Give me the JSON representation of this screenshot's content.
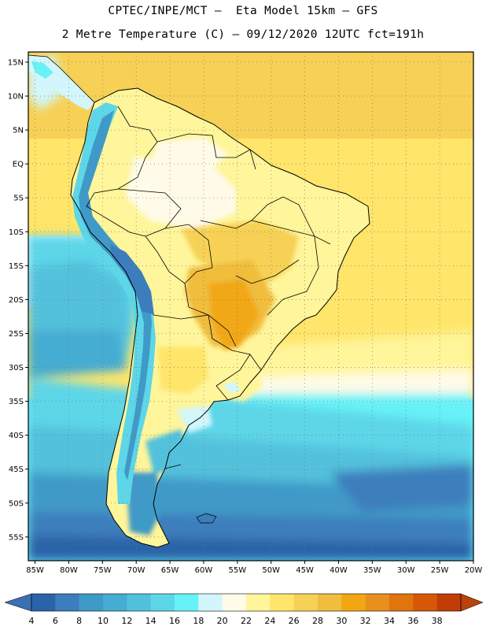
{
  "header": {
    "line1": "CPTEC/INPE/MCT –  Eta Model 15km – GFS",
    "line2": "2 Metre Temperature (C) – 09/12/2020 12UTC fct=191h"
  },
  "map": {
    "extent": {
      "lon": [
        -86,
        -20
      ],
      "lat": [
        -58.5,
        16.5
      ]
    },
    "lat_ticks": [
      {
        "value": 15,
        "label": "15N"
      },
      {
        "value": 10,
        "label": "10N"
      },
      {
        "value": 5,
        "label": "5N"
      },
      {
        "value": 0,
        "label": "EQ"
      },
      {
        "value": -5,
        "label": "5S"
      },
      {
        "value": -10,
        "label": "10S"
      },
      {
        "value": -15,
        "label": "15S"
      },
      {
        "value": -20,
        "label": "20S"
      },
      {
        "value": -25,
        "label": "25S"
      },
      {
        "value": -30,
        "label": "30S"
      },
      {
        "value": -35,
        "label": "35S"
      },
      {
        "value": -40,
        "label": "40S"
      },
      {
        "value": -45,
        "label": "45S"
      },
      {
        "value": -50,
        "label": "50S"
      },
      {
        "value": -55,
        "label": "55S"
      }
    ],
    "lon_ticks": [
      {
        "value": -85,
        "label": "85W"
      },
      {
        "value": -80,
        "label": "80W"
      },
      {
        "value": -75,
        "label": "75W"
      },
      {
        "value": -70,
        "label": "70W"
      },
      {
        "value": -65,
        "label": "65W"
      },
      {
        "value": -60,
        "label": "60W"
      },
      {
        "value": -55,
        "label": "55W"
      },
      {
        "value": -50,
        "label": "50W"
      },
      {
        "value": -45,
        "label": "45W"
      },
      {
        "value": -40,
        "label": "40W"
      },
      {
        "value": -35,
        "label": "35W"
      },
      {
        "value": -30,
        "label": "30W"
      },
      {
        "value": -25,
        "label": "25W"
      },
      {
        "value": -20,
        "label": "20W"
      }
    ]
  },
  "colorbar": {
    "labels": [
      "4",
      "6",
      "8",
      "10",
      "12",
      "14",
      "16",
      "18",
      "20",
      "22",
      "24",
      "26",
      "28",
      "30",
      "32",
      "34",
      "36",
      "38"
    ],
    "colors": [
      "#2a63a8",
      "#3c7ebd",
      "#3f9ac8",
      "#45acd2",
      "#52c1dc",
      "#5dd6e8",
      "#66f2f7",
      "#d2f6fb",
      "#fffbe8",
      "#fff59a",
      "#ffe56a",
      "#f6d155",
      "#f0bd3e",
      "#f2a712",
      "#e98f1e",
      "#e2740e",
      "#d65708",
      "#c23c05"
    ],
    "under_color": "#3a6fb0",
    "over_color": "#b8430c"
  }
}
